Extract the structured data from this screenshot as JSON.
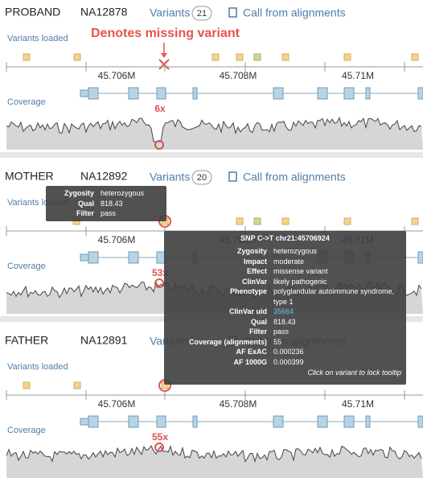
{
  "annotation": "Denotes missing variant",
  "labels": {
    "variants": "Variants",
    "call_link": "Call from alignments",
    "variants_loaded": "Variants loaded",
    "coverage": "Coverage"
  },
  "axis_ticks": [
    "45.706M",
    "45.708M",
    "45.71M"
  ],
  "panels": [
    {
      "role": "PROBAND",
      "sample": "NA12878",
      "variant_count": 21,
      "coverage_value": "6x"
    },
    {
      "role": "MOTHER",
      "sample": "NA12892",
      "variant_count": 20,
      "coverage_value": "53x"
    },
    {
      "role": "FATHER",
      "sample": "NA12891",
      "coverage_value": "55x"
    }
  ],
  "small_tooltip": {
    "rows": [
      {
        "label": "Zygosity",
        "value": "heterozygous"
      },
      {
        "label": "Qual",
        "value": "818.43"
      },
      {
        "label": "Filter",
        "value": "pass"
      }
    ]
  },
  "tooltip": {
    "title": "SNP C->T chr21:45706924",
    "rows": [
      {
        "label": "Zygosity",
        "value": "heterozygous"
      },
      {
        "label": "Impact",
        "value": "moderate"
      },
      {
        "label": "Effect",
        "value": "missense variant"
      },
      {
        "label": "ClinVar",
        "value": "likely pathogenic"
      },
      {
        "label": "Phenotype",
        "value": "polyglandular autoimmune syndrome, type 1"
      },
      {
        "label": "ClinVar uid",
        "value": "35664"
      },
      {
        "label": "Qual",
        "value": "818.43"
      },
      {
        "label": "Filter",
        "value": "pass"
      },
      {
        "label": "Coverage (alignments)",
        "value": "55"
      },
      {
        "label": "AF ExAC",
        "value": "0.000236"
      },
      {
        "label": "AF 1000G",
        "value": "0.000399"
      }
    ],
    "footer": "Click on variant to lock tooltip"
  }
}
